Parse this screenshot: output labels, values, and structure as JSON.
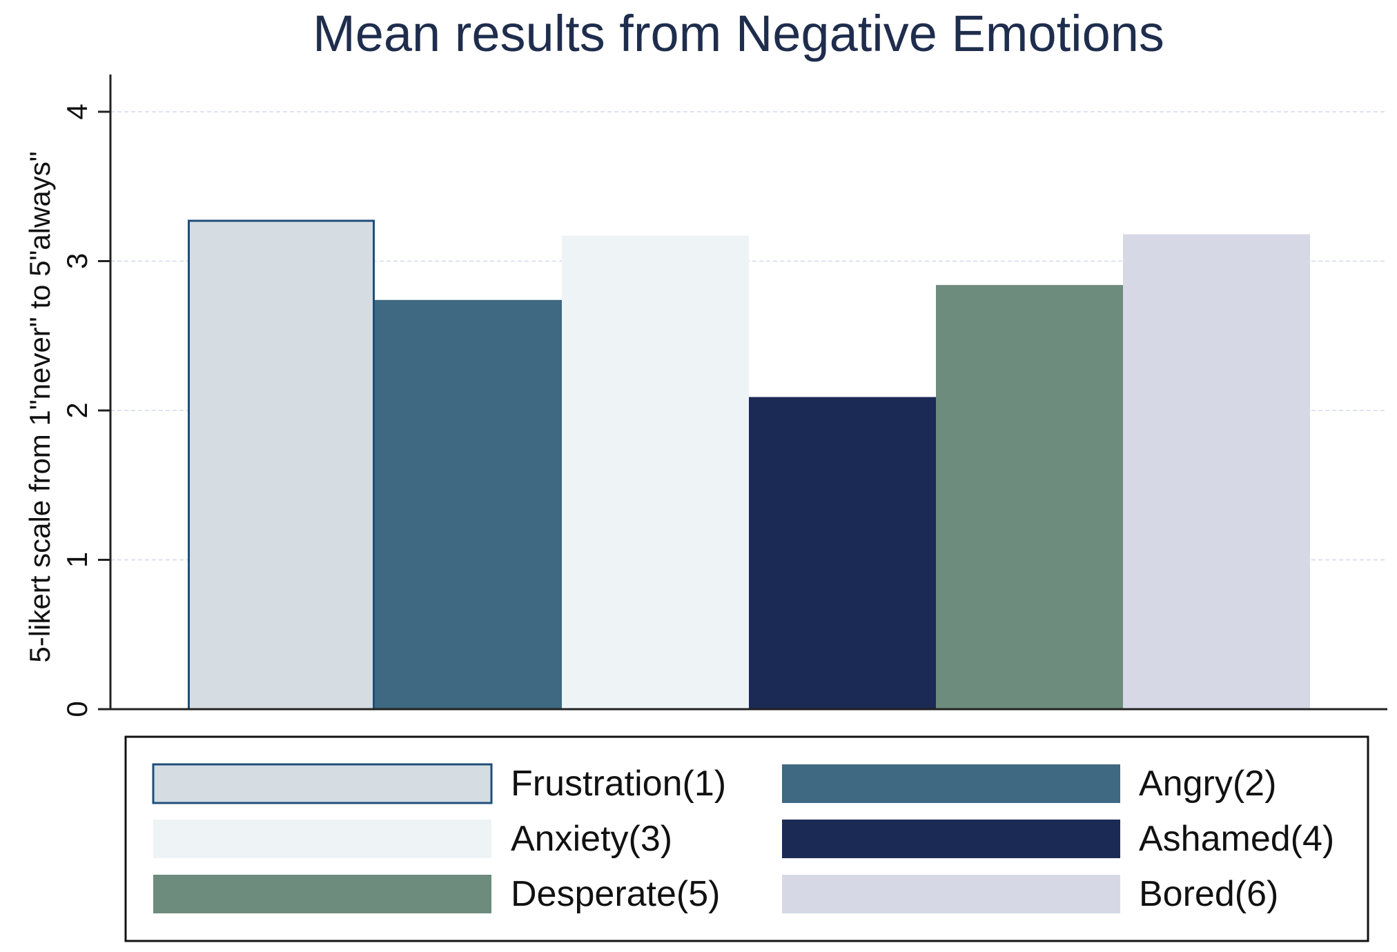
{
  "chart_data": {
    "type": "bar",
    "title": "Mean results from Negative Emotions",
    "xlabel": "",
    "ylabel": "5-likert scale from 1\"never\" to 5\"always\"",
    "ylim": [
      0,
      4.25
    ],
    "yticks": [
      "0",
      "1",
      "2",
      "3",
      "4"
    ],
    "grid": true,
    "legend_position": "bottom",
    "series": [
      {
        "name": "Frustration(1)",
        "value": 3.27,
        "color": "#d5dde3",
        "outline": "#1f4e79"
      },
      {
        "name": "Angry(2)",
        "value": 2.74,
        "color": "#3f6882",
        "outline": "#3f6882"
      },
      {
        "name": "Anxiety(3)",
        "value": 3.17,
        "color": "#eef3f5",
        "outline": "#eef3f5"
      },
      {
        "name": "Ashamed(4)",
        "value": 2.09,
        "color": "#1b2a55",
        "outline": "#1b2a55"
      },
      {
        "name": "Desperate(5)",
        "value": 2.84,
        "color": "#6d8c7d",
        "outline": "#6d8c7d"
      },
      {
        "name": "Bored(6)",
        "value": 3.18,
        "color": "#d6d9e5",
        "outline": "#d6d9e5"
      }
    ]
  }
}
